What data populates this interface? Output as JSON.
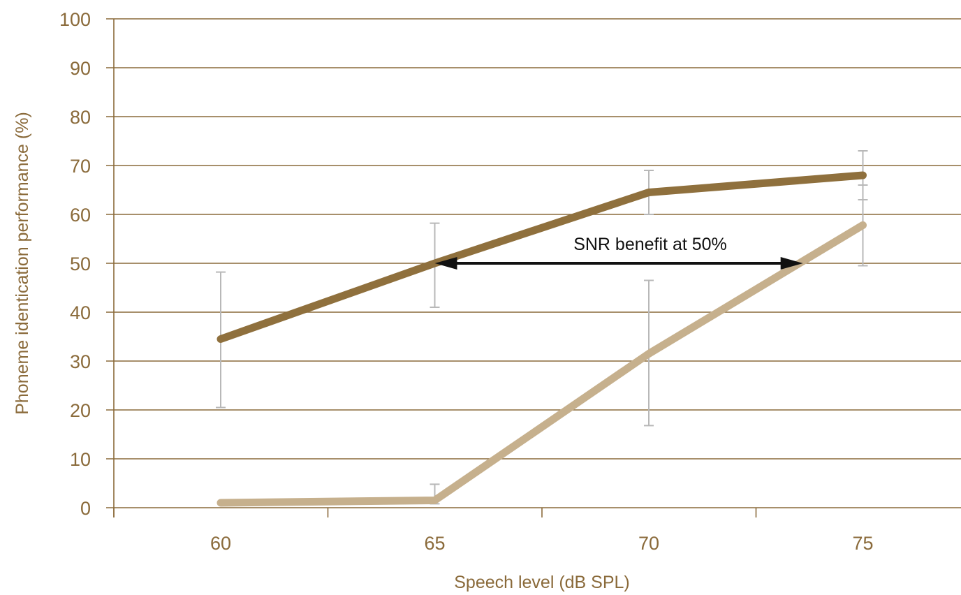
{
  "chart_data": {
    "type": "line",
    "title": "",
    "xlabel": "Speech level (dB SPL)",
    "ylabel": "Phoneme identication performance (%)",
    "x": [
      60,
      65,
      70,
      75
    ],
    "x_tick_labels": [
      "60",
      "65",
      "70",
      "75"
    ],
    "ylim": [
      0,
      100
    ],
    "y_ticks": [
      0,
      10,
      20,
      30,
      40,
      50,
      60,
      70,
      80,
      90,
      100
    ],
    "y_tick_labels": [
      "0",
      "10",
      "20",
      "30",
      "40",
      "50",
      "60",
      "70",
      "80",
      "90",
      "100"
    ],
    "grid": true,
    "legend": "none",
    "series": [
      {
        "color": "#8f703d",
        "values": [
          34.5,
          50,
          64.5,
          68
        ],
        "error_low": [
          20.5,
          41,
          60,
          63
        ],
        "error_high": [
          48.2,
          58.2,
          69,
          73
        ]
      },
      {
        "color": "#c6b08d",
        "values": [
          1,
          1.5,
          31.5,
          57.8
        ],
        "error_low": [
          1,
          0.8,
          16.8,
          49.5
        ],
        "error_high": [
          1,
          4.8,
          46.5,
          66
        ]
      }
    ],
    "annotation": {
      "text": "SNR benefit at 50%",
      "y": 50,
      "x_start": 65,
      "x_end": 73.6
    }
  },
  "colors": {
    "grid": "#8a6a3a",
    "axis_text": "#8a6a3a",
    "error_bar": "#b8b8b8",
    "annotation": "#111111"
  }
}
